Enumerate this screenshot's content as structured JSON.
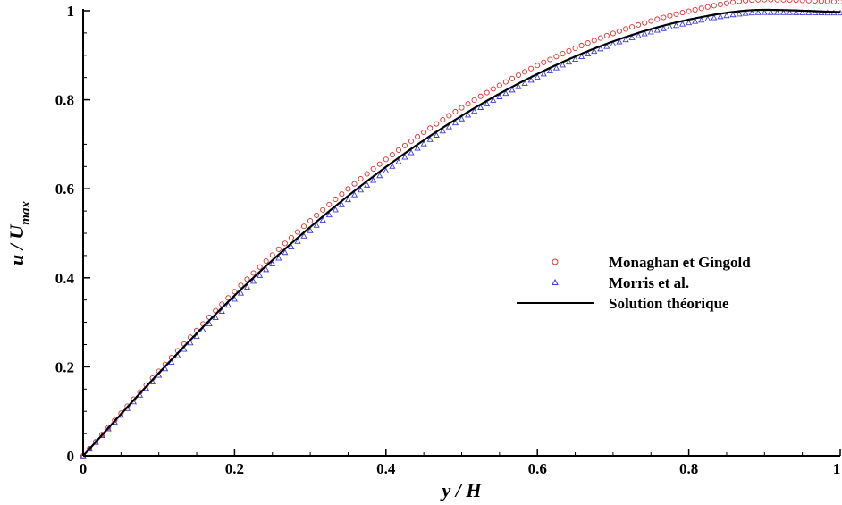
{
  "chart_data": {
    "type": "scatter",
    "title": "",
    "xlabel": "y / H",
    "ylabel": "u / U_max",
    "ylabel_main": "u / U",
    "ylabel_sub": "max",
    "xlim": [
      0,
      1
    ],
    "ylim": [
      0,
      1
    ],
    "x_ticks": [
      0,
      0.2,
      0.4,
      0.6,
      0.8,
      1
    ],
    "y_ticks": [
      0,
      0.2,
      0.4,
      0.6,
      0.8,
      1
    ],
    "x_tick_labels": [
      "0",
      "0.2",
      "0.4",
      "0.6",
      "0.8",
      "1"
    ],
    "y_tick_labels": [
      "0",
      "0.2",
      "0.4",
      "0.6",
      "0.8",
      "1"
    ],
    "grid": false,
    "legend_position": "right-center",
    "series": [
      {
        "name": "Monaghan et Gingold",
        "marker": "circle",
        "color": "#e03030",
        "points": 121,
        "x": [
          0,
          0.1,
          0.2,
          0.3,
          0.4,
          0.5,
          0.6,
          0.7,
          0.8,
          0.9,
          1.0
        ],
        "y": [
          0,
          0.19,
          0.369,
          0.528,
          0.666,
          0.782,
          0.877,
          0.949,
          0.999,
          1.025,
          1.02
        ]
      },
      {
        "name": "Morris et al.",
        "marker": "triangle",
        "color": "#3a3ae0",
        "points": 121,
        "x": [
          0,
          0.1,
          0.2,
          0.3,
          0.4,
          0.5,
          0.6,
          0.7,
          0.8,
          0.9,
          1.0
        ],
        "y": [
          0,
          0.181,
          0.352,
          0.506,
          0.64,
          0.757,
          0.851,
          0.925,
          0.973,
          0.996,
          0.995
        ]
      },
      {
        "name": "Solution théorique",
        "marker": "line",
        "color": "#000000",
        "x": [
          0,
          0.1,
          0.2,
          0.3,
          0.4,
          0.5,
          0.6,
          0.7,
          0.8,
          0.9,
          1.0
        ],
        "y": [
          0,
          0.186,
          0.36,
          0.514,
          0.649,
          0.764,
          0.858,
          0.931,
          0.98,
          1.002,
          0.997
        ]
      }
    ]
  }
}
